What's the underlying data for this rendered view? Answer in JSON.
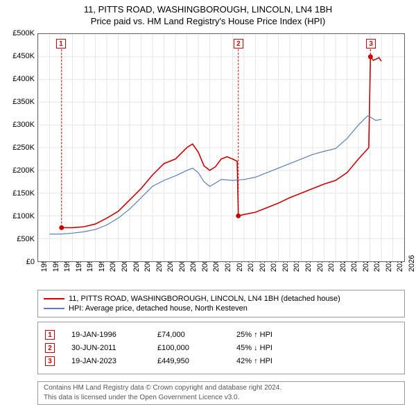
{
  "title_line1": "11, PITTS ROAD, WASHINGBOROUGH, LINCOLN, LN4 1BH",
  "title_line2": "Price paid vs. HM Land Registry's House Price Index (HPI)",
  "chart": {
    "type": "line",
    "background_color": "#ffffff",
    "border_color": "#666666",
    "grid_color": "#e6e6e6",
    "x_range": [
      1994,
      2026
    ],
    "y_range": [
      0,
      500000
    ],
    "y_ticks": [
      0,
      50000,
      100000,
      150000,
      200000,
      250000,
      300000,
      350000,
      400000,
      450000,
      500000
    ],
    "y_tick_labels": [
      "£0",
      "£50K",
      "£100K",
      "£150K",
      "£200K",
      "£250K",
      "£300K",
      "£350K",
      "£400K",
      "£450K",
      "£500K"
    ],
    "x_ticks": [
      1994,
      1995,
      1996,
      1997,
      1998,
      1999,
      2000,
      2001,
      2002,
      2003,
      2004,
      2005,
      2006,
      2007,
      2008,
      2009,
      2010,
      2011,
      2012,
      2013,
      2014,
      2015,
      2016,
      2017,
      2018,
      2019,
      2020,
      2021,
      2022,
      2023,
      2024,
      2025,
      2026
    ],
    "x_tick_labels": [
      "1994",
      "1995",
      "1996",
      "1997",
      "1998",
      "1999",
      "2000",
      "2001",
      "2002",
      "2003",
      "2004",
      "2005",
      "2006",
      "2007",
      "2008",
      "2009",
      "2010",
      "2011",
      "2012",
      "2013",
      "2014",
      "2015",
      "2016",
      "2017",
      "2018",
      "2019",
      "2020",
      "2021",
      "2022",
      "2023",
      "2024",
      "2025",
      "2026"
    ],
    "tick_fontsize": 11,
    "series": [
      {
        "name": "price_paid",
        "color": "#cc0000",
        "width": 1.6,
        "points": [
          [
            1996.05,
            74000
          ],
          [
            1997,
            74000
          ],
          [
            1998,
            76000
          ],
          [
            1999,
            82000
          ],
          [
            2000,
            95000
          ],
          [
            2001,
            110000
          ],
          [
            2002,
            135000
          ],
          [
            2003,
            160000
          ],
          [
            2004,
            190000
          ],
          [
            2005,
            215000
          ],
          [
            2006,
            225000
          ],
          [
            2007,
            250000
          ],
          [
            2007.5,
            258000
          ],
          [
            2008,
            240000
          ],
          [
            2008.5,
            210000
          ],
          [
            2009,
            200000
          ],
          [
            2009.5,
            208000
          ],
          [
            2010,
            225000
          ],
          [
            2010.5,
            230000
          ],
          [
            2011,
            225000
          ],
          [
            2011.4,
            220000
          ],
          [
            2011.5,
            100000
          ],
          [
            2012,
            103000
          ],
          [
            2013,
            108000
          ],
          [
            2014,
            118000
          ],
          [
            2015,
            128000
          ],
          [
            2016,
            140000
          ],
          [
            2017,
            150000
          ],
          [
            2018,
            160000
          ],
          [
            2019,
            170000
          ],
          [
            2020,
            178000
          ],
          [
            2021,
            195000
          ],
          [
            2022,
            225000
          ],
          [
            2022.9,
            250000
          ],
          [
            2023.05,
            449950
          ],
          [
            2023.3,
            442000
          ],
          [
            2023.8,
            448000
          ],
          [
            2024,
            440000
          ]
        ],
        "sale_markers": [
          {
            "x": 1996.05,
            "y": 74000
          },
          {
            "x": 2011.5,
            "y": 100000
          },
          {
            "x": 2023.05,
            "y": 449950
          }
        ]
      },
      {
        "name": "hpi",
        "color": "#5b7fb3",
        "width": 1.2,
        "points": [
          [
            1995,
            60000
          ],
          [
            1996,
            60000
          ],
          [
            1997,
            62000
          ],
          [
            1998,
            65000
          ],
          [
            1999,
            70000
          ],
          [
            2000,
            80000
          ],
          [
            2001,
            95000
          ],
          [
            2002,
            115000
          ],
          [
            2003,
            140000
          ],
          [
            2004,
            165000
          ],
          [
            2005,
            178000
          ],
          [
            2006,
            188000
          ],
          [
            2007,
            200000
          ],
          [
            2007.5,
            205000
          ],
          [
            2008,
            195000
          ],
          [
            2008.5,
            175000
          ],
          [
            2009,
            165000
          ],
          [
            2009.5,
            172000
          ],
          [
            2010,
            180000
          ],
          [
            2011,
            178000
          ],
          [
            2012,
            180000
          ],
          [
            2013,
            185000
          ],
          [
            2014,
            195000
          ],
          [
            2015,
            205000
          ],
          [
            2016,
            215000
          ],
          [
            2017,
            225000
          ],
          [
            2018,
            235000
          ],
          [
            2019,
            242000
          ],
          [
            2020,
            248000
          ],
          [
            2021,
            270000
          ],
          [
            2022,
            300000
          ],
          [
            2022.8,
            320000
          ],
          [
            2023,
            318000
          ],
          [
            2023.5,
            310000
          ],
          [
            2024,
            312000
          ]
        ]
      }
    ],
    "chart_markers": [
      {
        "num": "1",
        "x": 1996.05,
        "top_offset": 8
      },
      {
        "num": "2",
        "x": 2011.5,
        "top_offset": 8
      },
      {
        "num": "3",
        "x": 2023.05,
        "top_offset": 8
      }
    ]
  },
  "legend": {
    "items": [
      {
        "color": "#cc0000",
        "label": "11, PITTS ROAD, WASHINGBOROUGH, LINCOLN, LN4 1BH (detached house)"
      },
      {
        "color": "#5b7fb3",
        "label": "HPI: Average price, detached house, North Kesteven"
      }
    ]
  },
  "data_rows": [
    {
      "num": "1",
      "date": "19-JAN-1996",
      "price": "£74,000",
      "pct": "25% ↑ HPI"
    },
    {
      "num": "2",
      "date": "30-JUN-2011",
      "price": "£100,000",
      "pct": "45% ↓ HPI"
    },
    {
      "num": "3",
      "date": "19-JAN-2023",
      "price": "£449,950",
      "pct": "42% ↑ HPI"
    }
  ],
  "footer": {
    "line1": "Contains HM Land Registry data © Crown copyright and database right 2024.",
    "line2": "This data is licensed under the Open Government Licence v3.0."
  }
}
